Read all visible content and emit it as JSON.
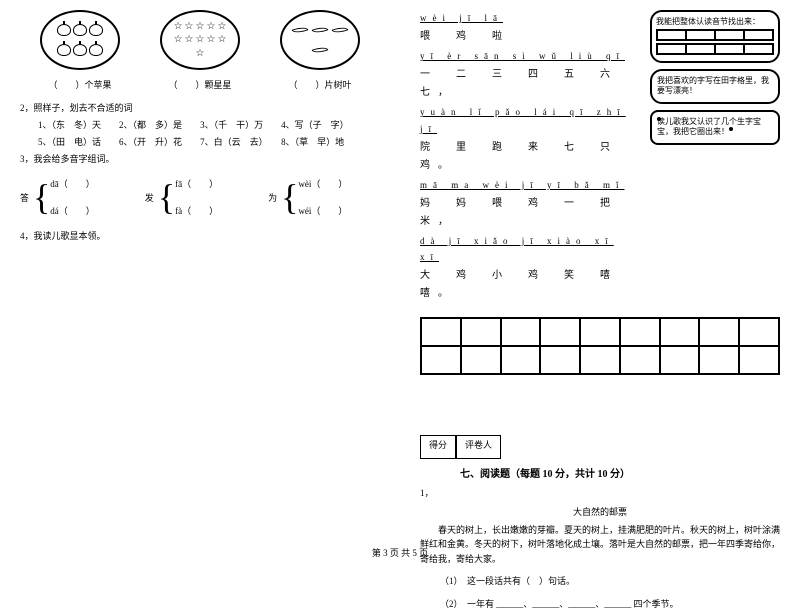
{
  "left": {
    "captions": {
      "c1_pre": "（",
      "c1_post": "）个苹果",
      "c2_pre": "（",
      "c2_post": "）颗星星",
      "c3_pre": "（",
      "c3_post": "）片树叶"
    },
    "q2_title": "2，照样子，划去不合适的词",
    "q2_items": {
      "i1": "1、（东　冬）天",
      "i2": "2、（都　多）是",
      "i3": "3、（千　干）万",
      "i4": "4、写（子　字）",
      "i5": "5、（田　电）话",
      "i6": "6、（开　升）花",
      "i7": "7、白（云　去）",
      "i8": "8、（草　早）地"
    },
    "q3_title": "3，我会给多音字组词。",
    "brackets": {
      "b1_char": "答",
      "b1_top": "dā（　　）",
      "b1_bot": "dá（　　）",
      "b2_char": "发",
      "b2_top": "fā（　　）",
      "b2_bot": "fà（　　）",
      "b3_char": "为",
      "b3_top": "wèi（　　）",
      "b3_bot": "wéi（　　）"
    },
    "q4_title": "4，我读儿歌显本领。"
  },
  "right": {
    "poem": {
      "p1_py": "wèi jī lā",
      "p1_hz": "喂　鸡　啦",
      "p2_py": "yī èr sān sì wǔ liù qī",
      "p2_hz": "一　二　三　四　五　六　七，",
      "p3_py": "yuàn lǐ pǎo lái qī zhī jī",
      "p3_hz": "院　里　跑　来　七　只　鸡。",
      "p4_py": "mā ma wèi jī yī bǎ mǐ",
      "p4_hz": "妈　妈　喂　鸡　一　把　米，",
      "p5_py": "dà jī xiǎo jī xiào xī xī",
      "p5_hz": "大　鸡　小　鸡　笑　嘻　嘻。"
    },
    "bubbles": {
      "b1": "我能把整体认读音节找出来：",
      "b2": "我把喜欢的字写在田字格里，我要写漂亮！",
      "b3": "读儿歌我又认识了几个生字宝宝，我把它圈出来！"
    },
    "score": {
      "s1": "得分",
      "s2": "评卷人"
    },
    "sec7": "七、阅读题（每题 10 分，共计 10 分）",
    "reading": {
      "num": "1，",
      "title": "大自然的邮票",
      "body": "春天的树上，长出嫩嫩的芽瓣。夏天的树上，挂满肥肥的叶片。秋天的树上，树叶涂满鲜红和金黄。冬天的树下，树叶落地化成土壤。落叶是大自然的邮票，把一年四季寄给你，寄给我，寄给大家。",
      "q1": "（1）　这一段话共有（　）句话。",
      "q2": "（2）　一年有 ______、______、______、______ 四个季节。"
    }
  },
  "footer": "第 3 页 共 5 页"
}
